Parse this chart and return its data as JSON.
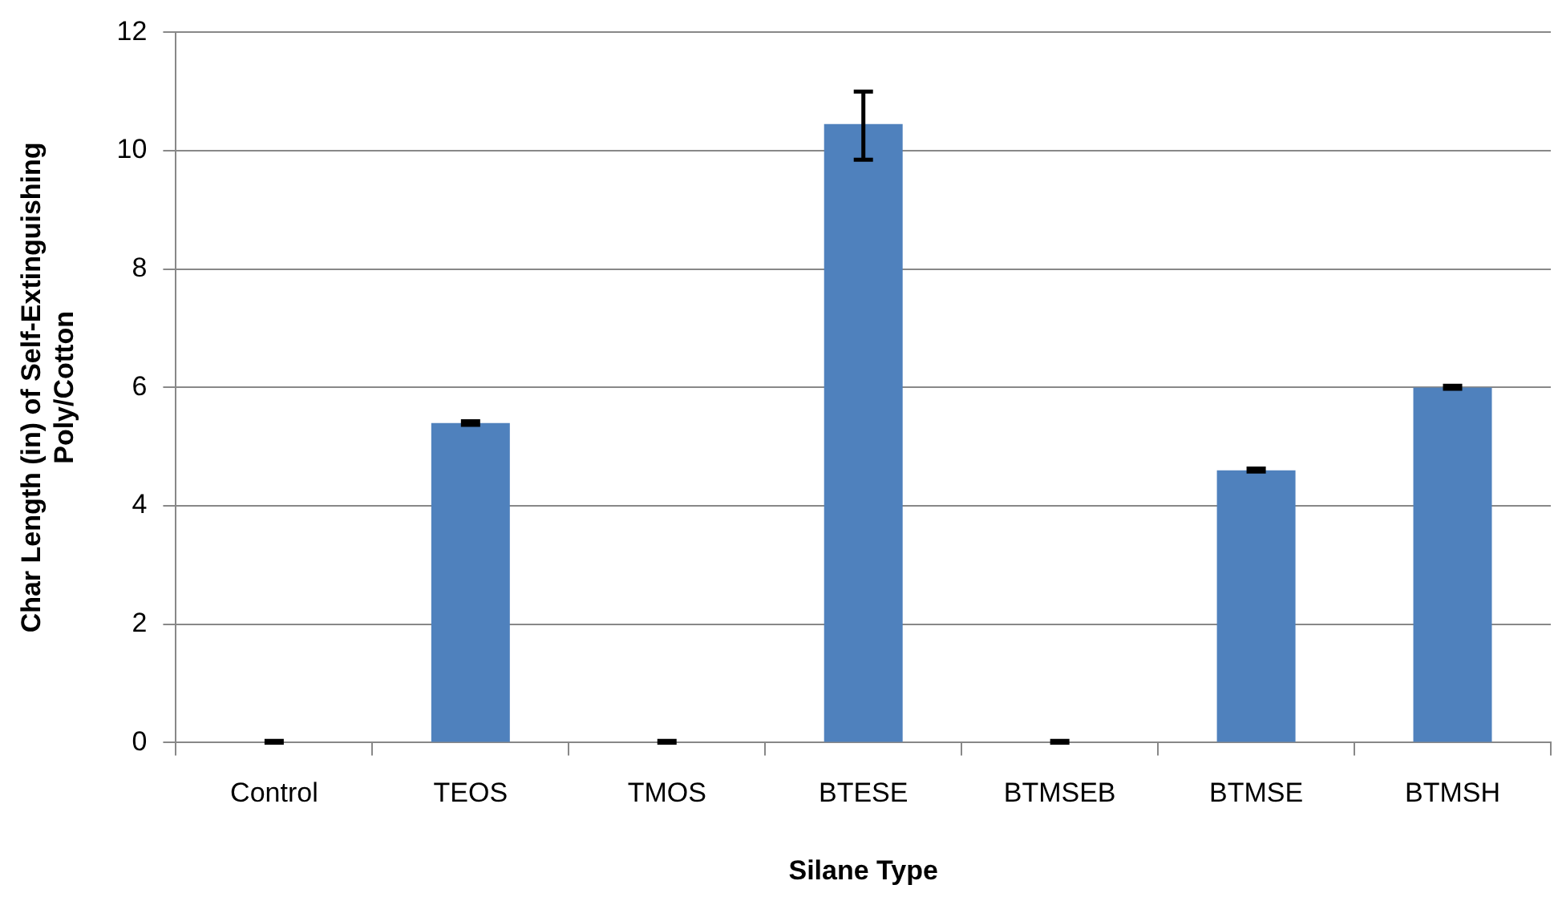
{
  "chart_data": {
    "type": "bar",
    "xlabel": "Silane Type",
    "ylabel": "Char Length (in) of Self-Extinguishing Poly/Cotton",
    "categories": [
      "Control",
      "TEOS",
      "TMOS",
      "BTESE",
      "BTMSEB",
      "BTMSE",
      "BTMSH"
    ],
    "values": [
      0,
      5.4,
      0,
      10.45,
      0,
      4.6,
      6.0
    ],
    "errors": [
      [
        0,
        0.03
      ],
      [
        5.37,
        5.43
      ],
      [
        0,
        0.03
      ],
      [
        9.85,
        11.0
      ],
      [
        0,
        0.03
      ],
      [
        4.58,
        4.63
      ],
      [
        5.98,
        6.03
      ]
    ],
    "color": "#4f81bd",
    "ylim": [
      0,
      12
    ],
    "yticks": [
      0,
      2,
      4,
      6,
      8,
      10,
      12
    ],
    "grid": "y",
    "legend": false
  }
}
